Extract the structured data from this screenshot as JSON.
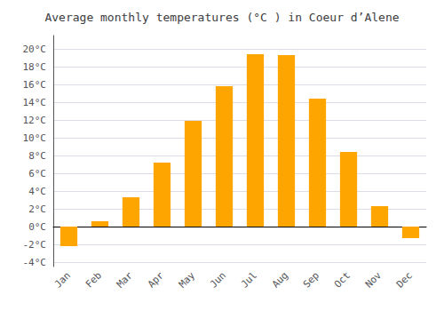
{
  "chart_data": {
    "type": "bar",
    "title": "Average monthly temperatures (°C ) in Coeur d’Alene",
    "categories": [
      "Jan",
      "Feb",
      "Mar",
      "Apr",
      "May",
      "Jun",
      "Jul",
      "Aug",
      "Sep",
      "Oct",
      "Nov",
      "Dec"
    ],
    "values": [
      -2.2,
      0.6,
      3.3,
      7.2,
      11.9,
      15.8,
      19.4,
      19.3,
      14.4,
      8.4,
      2.3,
      -1.3
    ],
    "color": "#FFA500",
    "ylim": [
      -4.5,
      21.5
    ],
    "yticks": [
      {
        "value": -4,
        "label": "-4°C"
      },
      {
        "value": -2,
        "label": "-2°C"
      },
      {
        "value": 0,
        "label": "0°C"
      },
      {
        "value": 2,
        "label": "2°C"
      },
      {
        "value": 4,
        "label": "4°C"
      },
      {
        "value": 6,
        "label": "6°C"
      },
      {
        "value": 8,
        "label": "8°C"
      },
      {
        "value": 10,
        "label": "10°C"
      },
      {
        "value": 12,
        "label": "12°C"
      },
      {
        "value": 14,
        "label": "14°C"
      },
      {
        "value": 16,
        "label": "16°C"
      },
      {
        "value": 18,
        "label": "18°C"
      },
      {
        "value": 20,
        "label": "20°C"
      }
    ],
    "grid": true
  }
}
